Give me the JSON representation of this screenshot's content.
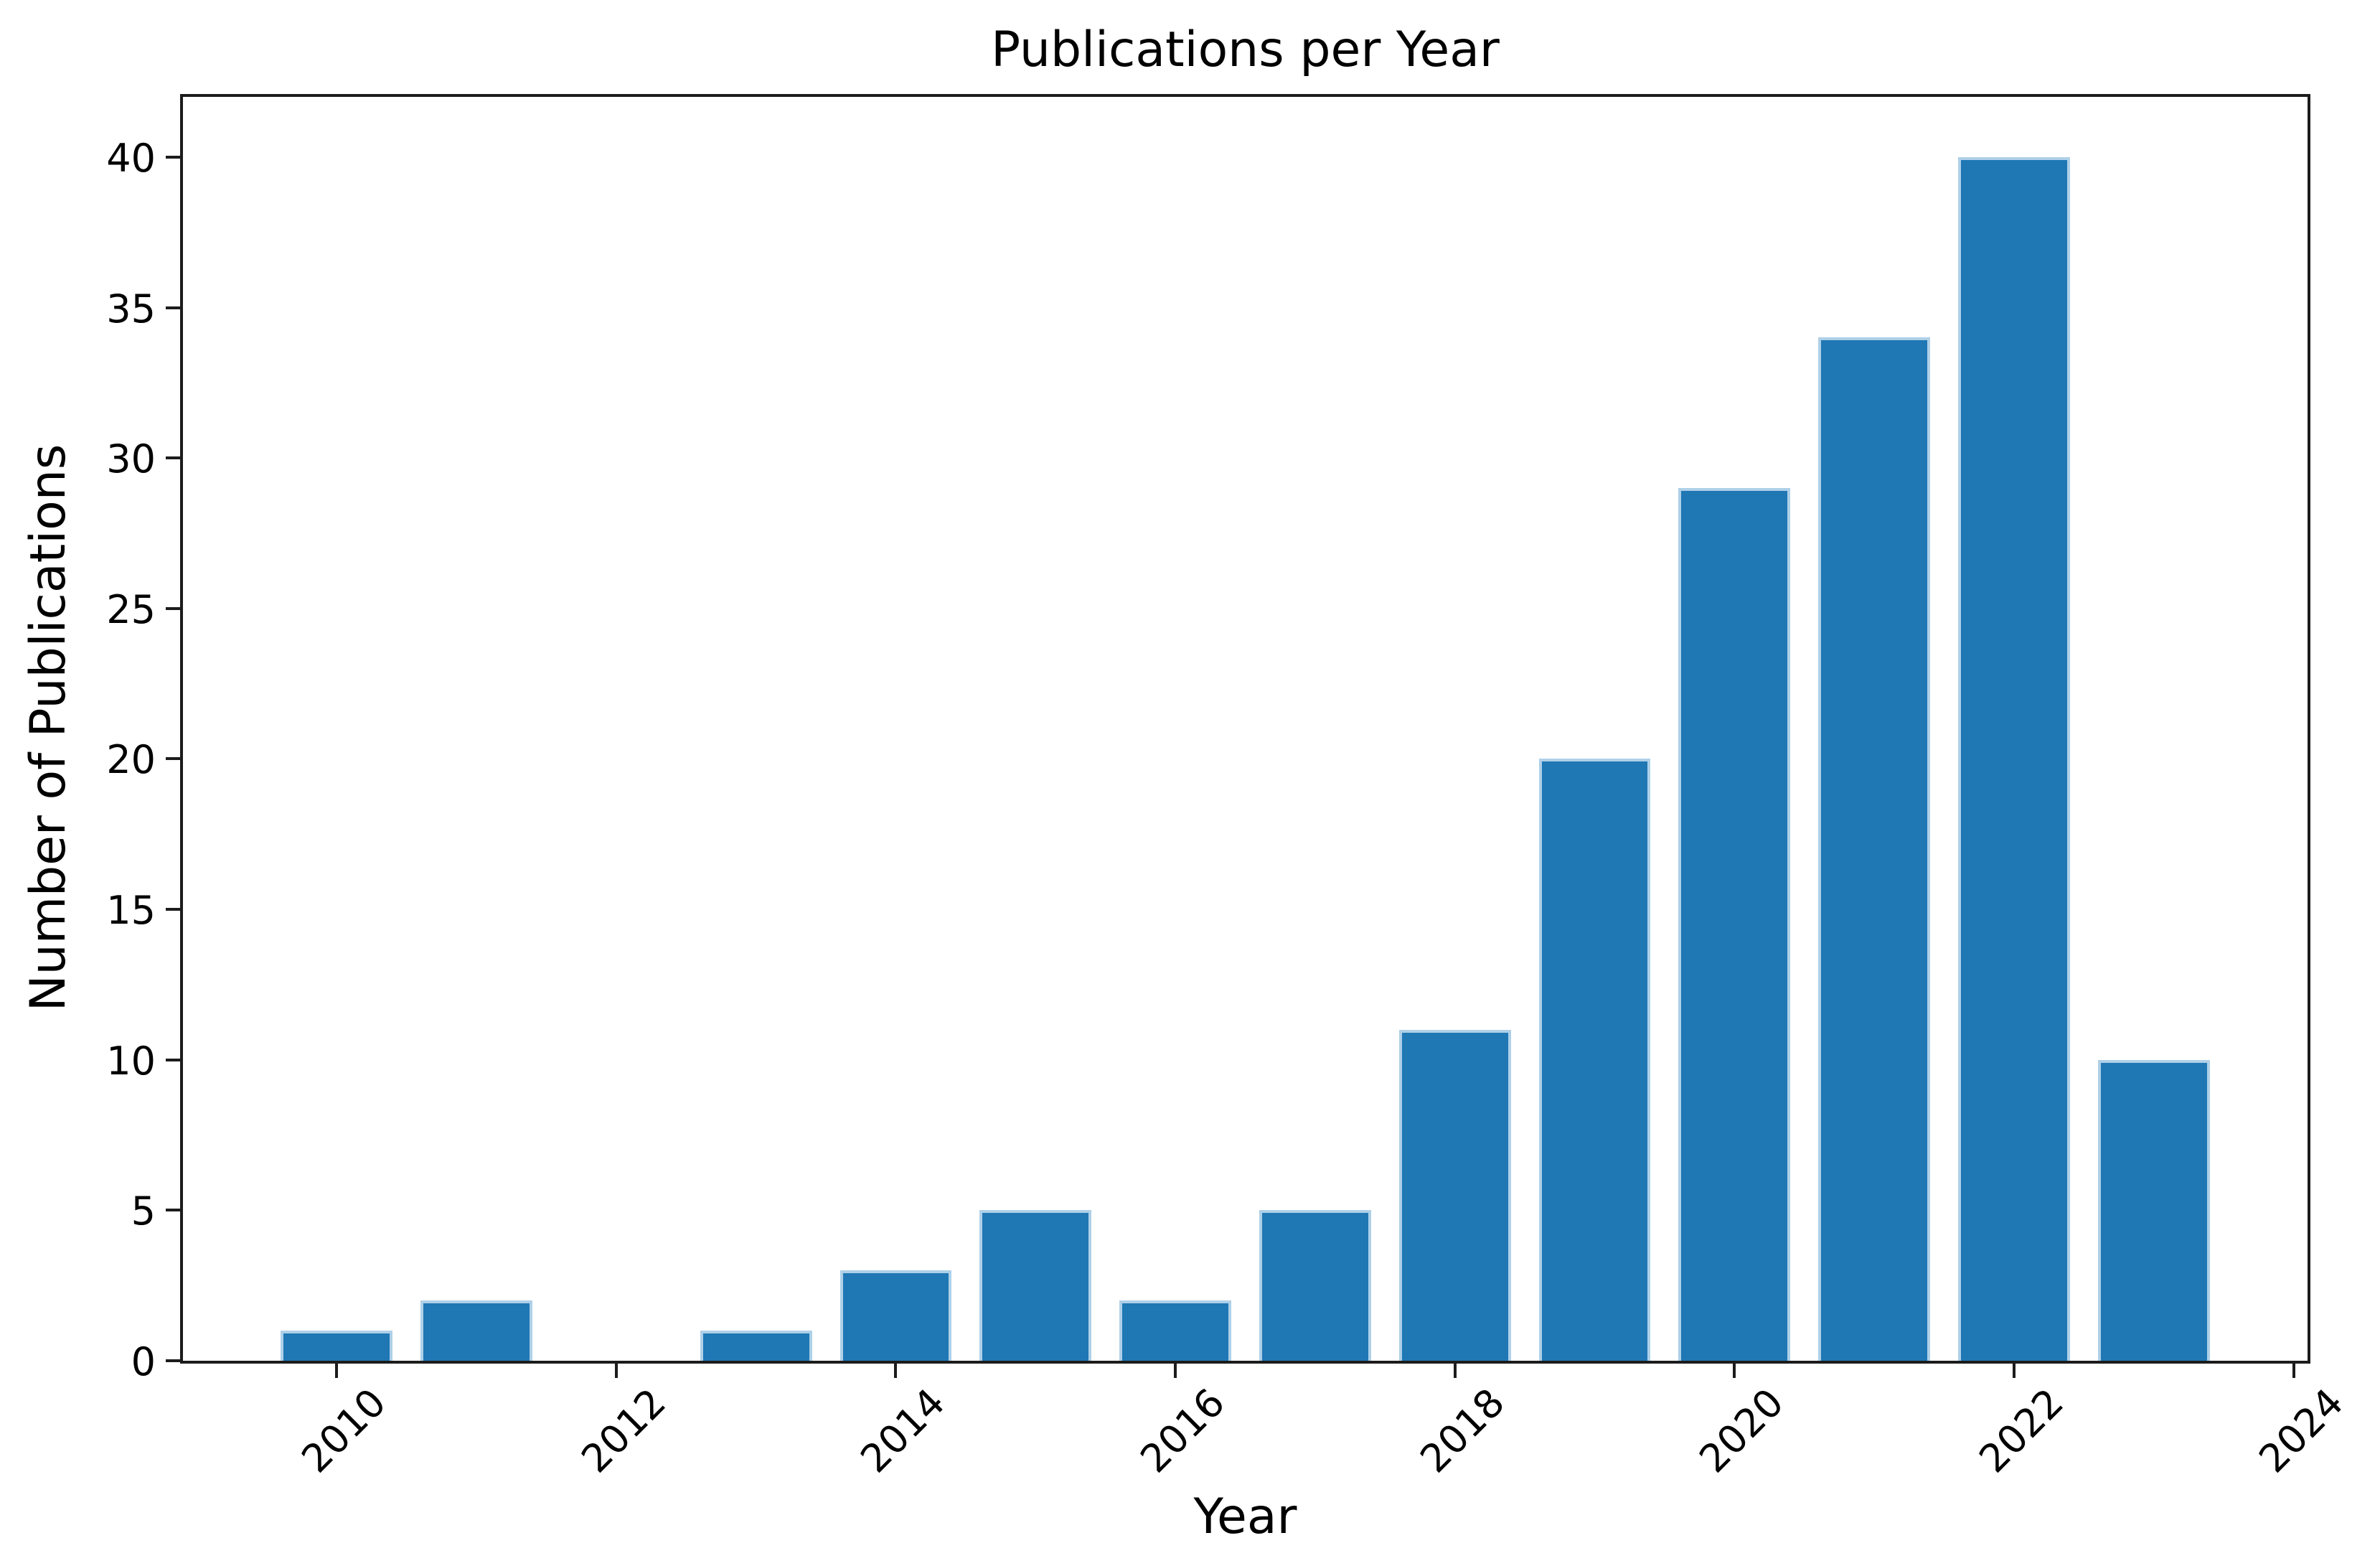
{
  "chart_data": {
    "type": "bar",
    "title": "Publications per Year",
    "xlabel": "Year",
    "ylabel": "Number of Publications",
    "categories": [
      "2010",
      "2011",
      "2012",
      "2013",
      "2014",
      "2015",
      "2016",
      "2017",
      "2018",
      "2019",
      "2020",
      "2021",
      "2022",
      "2023"
    ],
    "values": [
      1,
      2,
      0,
      1,
      3,
      5,
      2,
      5,
      11,
      20,
      29,
      34,
      40,
      10
    ],
    "x_tick_labels": [
      "2010",
      "2012",
      "2014",
      "2016",
      "2018",
      "2020",
      "2022",
      "2024"
    ],
    "y_tick_labels": [
      "0",
      "5",
      "10",
      "15",
      "20",
      "25",
      "30",
      "35",
      "40"
    ],
    "xlim": [
      2008.9,
      2024.1
    ],
    "ylim": [
      0,
      42
    ],
    "bar_width_years": 0.8,
    "grid": false,
    "legend": null,
    "colors": {
      "bar_fill": "#1f77b4",
      "bar_edge_highlight": "#aed0e8",
      "axis": "#1c1c1c",
      "text": "#000000",
      "background": "#ffffff"
    }
  }
}
